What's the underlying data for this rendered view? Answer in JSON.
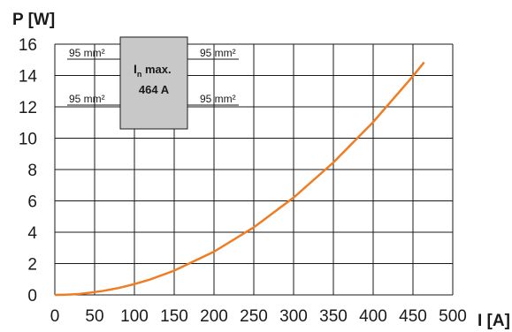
{
  "chart_data": {
    "type": "line",
    "xlabel": "I [A]",
    "ylabel": "P [W]",
    "xlim": [
      0,
      500
    ],
    "ylim": [
      0,
      16
    ],
    "x_ticks": [
      "0",
      "50",
      "100",
      "150",
      "200",
      "250",
      "300",
      "350",
      "400",
      "450",
      "500"
    ],
    "y_ticks": [
      "0",
      "2",
      "4",
      "6",
      "8",
      "10",
      "12",
      "14",
      "16"
    ],
    "grid": true,
    "series": [
      {
        "color": "#f07d23",
        "x": [
          0,
          10,
          20,
          30,
          40,
          60,
          80,
          100,
          120,
          150,
          200,
          250,
          300,
          350,
          400,
          450,
          464
        ],
        "y": [
          0,
          0.01,
          0.03,
          0.06,
          0.11,
          0.25,
          0.44,
          0.69,
          0.99,
          1.55,
          2.76,
          4.31,
          6.21,
          8.45,
          11.03,
          13.96,
          14.84
        ]
      }
    ],
    "annotation_box": {
      "line1_main": "I",
      "line1_sub": "n",
      "line1_rest": " max.",
      "line2": "464 A"
    },
    "cross_section_labels": {
      "top_left": "95 mm²",
      "top_right": "95 mm²",
      "bottom_left": "95 mm²",
      "bottom_right": "95 mm²"
    },
    "colors": {
      "curve": "#f07d23",
      "box_fill": "#c8c8c8",
      "grid": "#1a1a1a"
    }
  }
}
